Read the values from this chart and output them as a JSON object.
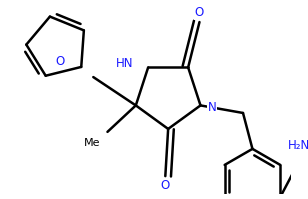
{
  "bg_color": "#ffffff",
  "line_color": "#000000",
  "line_width": 1.8,
  "font_size": 8.5,
  "figsize": [
    3.08,
    1.99
  ],
  "dpi": 100,
  "xlim": [
    0,
    308
  ],
  "ylim": [
    0,
    199
  ]
}
